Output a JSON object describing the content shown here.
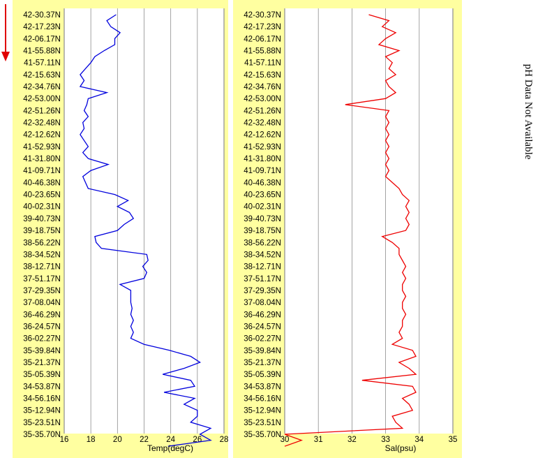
{
  "chart_data": [
    {
      "type": "line",
      "orientation": "vertical-profile",
      "xlabel": "Temp(degC)",
      "xlim": [
        16,
        28
      ],
      "xticks": [
        16,
        18,
        20,
        22,
        24,
        26,
        28
      ],
      "grid": true,
      "series": [
        {
          "color": "#0000dd",
          "y_index": [
            0,
            0.5,
            1,
            1.5,
            2,
            2.5,
            3,
            3.5,
            4,
            4.5,
            5,
            5.5,
            6,
            6.5,
            7,
            7.5,
            8,
            8.5,
            9,
            9.5,
            10,
            10.5,
            11,
            11.5,
            12,
            12.5,
            13,
            13.5,
            14,
            14.5,
            15,
            15.5,
            16,
            16.5,
            17,
            17.5,
            18,
            18.5,
            19,
            19.5,
            20,
            20.5,
            21,
            21.5,
            22,
            22.5,
            23,
            23.5,
            24,
            24.5,
            25,
            25.5,
            26,
            26.5,
            27,
            27.5,
            28,
            28.5,
            29,
            29.5,
            30,
            30.5,
            31,
            31.5,
            32,
            32.5,
            33,
            33.5,
            34,
            34.5,
            35,
            35.5,
            36
          ],
          "values": [
            19.9,
            19.2,
            19.5,
            20.2,
            19.8,
            19.8,
            19.0,
            18.3,
            18.0,
            17.6,
            17.2,
            17.5,
            17.2,
            19.2,
            17.8,
            17.7,
            17.5,
            17.8,
            17.4,
            17.5,
            17.2,
            17.5,
            17.8,
            17.4,
            17.8,
            19.3,
            18.0,
            17.4,
            17.6,
            17.8,
            19.8,
            20.8,
            20.0,
            20.9,
            21.2,
            20.5,
            20.0,
            18.3,
            18.4,
            18.8,
            22.2,
            22.3,
            21.9,
            22.2,
            22.0,
            20.2,
            21.0,
            21.0,
            21.0,
            21.1,
            21.0,
            21.2,
            21.0,
            21.2,
            21.0,
            22.0,
            23.9,
            25.5,
            26.2,
            25.0,
            23.4,
            25.5,
            25.8,
            23.5,
            25.8,
            25.0,
            26.0,
            26.0,
            25.5,
            27.0,
            26.2,
            27.0,
            23.8
          ]
        }
      ]
    },
    {
      "type": "line",
      "orientation": "vertical-profile",
      "xlabel": "Sal(psu)",
      "xlim": [
        30,
        35
      ],
      "xticks": [
        30,
        31,
        32,
        33,
        34,
        35
      ],
      "grid": true,
      "series": [
        {
          "color": "#ee0000",
          "y_index": [
            0,
            0.5,
            1,
            1.5,
            2,
            2.5,
            3,
            3.5,
            4,
            4.5,
            5,
            5.5,
            6,
            6.5,
            7,
            7.5,
            8,
            8.5,
            9,
            9.5,
            10,
            10.5,
            11,
            11.5,
            12,
            12.5,
            13,
            13.5,
            14,
            14.5,
            15,
            15.5,
            16,
            16.5,
            17,
            17.5,
            18,
            18.5,
            19,
            19.5,
            20,
            20.5,
            21,
            21.5,
            22,
            22.5,
            23,
            23.5,
            24,
            24.5,
            25,
            25.5,
            26,
            26.5,
            27,
            27.5,
            28,
            28.5,
            29,
            29.5,
            30,
            30.5,
            31,
            31.5,
            32,
            32.5,
            33,
            33.5,
            34,
            34.5,
            35,
            35.5,
            36
          ],
          "values": [
            32.5,
            33.1,
            32.9,
            33.3,
            33.0,
            32.8,
            33.4,
            33.0,
            33.2,
            33.1,
            33.3,
            33.0,
            33.1,
            33.3,
            33.0,
            31.8,
            33.1,
            33.0,
            33.1,
            33.0,
            33.1,
            33.0,
            33.1,
            33.0,
            33.1,
            33.0,
            33.1,
            33.0,
            33.2,
            33.4,
            33.5,
            33.7,
            33.6,
            33.7,
            33.6,
            33.7,
            33.6,
            32.9,
            33.2,
            33.4,
            33.4,
            33.5,
            33.6,
            33.5,
            33.6,
            33.5,
            33.5,
            33.6,
            33.5,
            33.5,
            33.6,
            33.5,
            33.5,
            33.4,
            33.5,
            33.2,
            33.8,
            33.9,
            33.4,
            33.7,
            33.9,
            32.3,
            33.8,
            33.9,
            33.5,
            33.7,
            33.8,
            33.2,
            33.3,
            33.5,
            30.0,
            30.5,
            30.0
          ]
        }
      ]
    }
  ],
  "y_labels": [
    "42-30.37N",
    "42-17.23N",
    "42-06.17N",
    "41-55.88N",
    "41-57.11N",
    "42-15.63N",
    "42-34.76N",
    "42-53.00N",
    "42-51.26N",
    "42-32.48N",
    "42-12.62N",
    "41-52.93N",
    "41-31.80N",
    "41-09.71N",
    "40-46.38N",
    "40-23.65N",
    "40-02.31N",
    "39-40.73N",
    "39-18.75N",
    "38-56.22N",
    "38-34.52N",
    "38-12.71N",
    "37-51.17N",
    "37-29.35N",
    "37-08.04N",
    "36-46.29N",
    "36-24.57N",
    "36-02.27N",
    "35-39.84N",
    "35-21.37N",
    "35-05.39N",
    "34-53.87N",
    "34-56.16N",
    "35-12.94N",
    "35-23.51N",
    "35-35.70N"
  ],
  "side_note": "pH Data Not Available",
  "colors": {
    "panel_bg": "#ffffa0",
    "plot_bg": "#ffffff",
    "grid": "#8c8c8c",
    "arrow": "#e00000"
  },
  "direction_icon": "down-arrow-icon"
}
